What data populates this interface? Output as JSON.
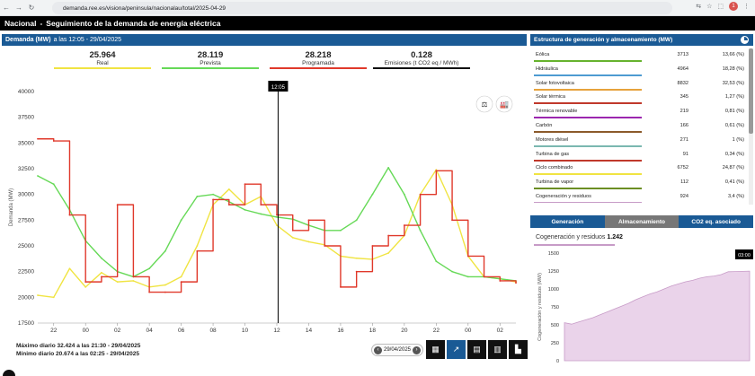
{
  "browser": {
    "url": "demanda.ree.es/visiona/peninsula/nacionalau/total/2025-04-29",
    "profile_initial": "1"
  },
  "site": {
    "region": "Nacional",
    "separator": "-",
    "title": "Seguimiento de la demanda de energía eléctrica"
  },
  "demand_panel": {
    "title_bold": "Demanda (MW)",
    "title_rest": "a las 12:05 - 29/04/2025",
    "kpis": [
      {
        "value": "25.964",
        "label": "Real",
        "color": "#f0e442"
      },
      {
        "value": "28.119",
        "label": "Prevista",
        "color": "#66d957"
      },
      {
        "value": "28.218",
        "label": "Programada",
        "color": "#e0392b"
      },
      {
        "value": "0.128",
        "label": "Emisiones (t CO2 eq / MWh)",
        "color": "#111111"
      }
    ],
    "cursor_label": "12:05",
    "ylabel": "Demanda (MW)",
    "max_text": "Máximo diario 32.424 a las 21:30 - 29/04/2025",
    "min_text": "Mínimo diario 20.674 a las 02:25 - 29/04/2025",
    "date": "29/04/2025"
  },
  "chart_data": [
    {
      "type": "line",
      "ylabel": "Demanda (MW)",
      "ylim": [
        17500,
        40000
      ],
      "yticks": [
        17500,
        20000,
        22500,
        25000,
        27500,
        30000,
        32500,
        35000,
        37500,
        40000
      ],
      "xticks": [
        "22",
        "00",
        "02",
        "04",
        "06",
        "08",
        "10",
        "12",
        "14",
        "16",
        "18",
        "20",
        "22",
        "00",
        "02"
      ],
      "x_hours": [
        21,
        22,
        23,
        24,
        25,
        26,
        27,
        28,
        29,
        30,
        31,
        32,
        33,
        34,
        35,
        36,
        37,
        38,
        39,
        40,
        41,
        42,
        43,
        44,
        45,
        46,
        47,
        48,
        49,
        50,
        51
      ],
      "series": [
        {
          "name": "Real",
          "color": "#f0e442",
          "values": [
            20200,
            20000,
            22800,
            21000,
            22400,
            21500,
            21600,
            21000,
            21200,
            22000,
            25000,
            29000,
            30500,
            29000,
            29800,
            27000,
            25800,
            25400,
            25100,
            24000,
            23800,
            23700,
            24300,
            26000,
            30000,
            32400,
            29000,
            24000,
            22000,
            21800,
            21500
          ]
        },
        {
          "name": "Prevista",
          "color": "#66d957",
          "values": [
            31800,
            31000,
            28500,
            25500,
            23800,
            22500,
            22000,
            22800,
            24500,
            27500,
            29800,
            30000,
            29300,
            28500,
            28100,
            27800,
            27600,
            27000,
            26500,
            26500,
            27500,
            30000,
            32600,
            30000,
            26500,
            23500,
            22500,
            22000,
            22000,
            21800,
            21600
          ]
        },
        {
          "name": "Programada",
          "color": "#e0392b",
          "values": [
            35400,
            35200,
            28000,
            21500,
            22000,
            29000,
            22000,
            20500,
            20500,
            21500,
            24500,
            29500,
            29000,
            31000,
            29000,
            28000,
            26500,
            27500,
            25000,
            21000,
            22500,
            25000,
            26000,
            27000,
            30000,
            32300,
            27500,
            24000,
            22000,
            21600,
            21400
          ]
        }
      ]
    },
    {
      "type": "area",
      "title": "Cogeneración y residuos 1.242",
      "ylabel": "Cogeneración y residuos (MW)",
      "ylim": [
        0,
        1500
      ],
      "yticks": [
        0,
        250,
        500,
        750,
        1000,
        1250,
        1500
      ],
      "cursor_label": "03:00",
      "values": [
        530,
        510,
        540,
        570,
        600,
        640,
        680,
        720,
        760,
        800,
        850,
        890,
        930,
        960,
        1000,
        1040,
        1070,
        1100,
        1120,
        1150,
        1170,
        1180,
        1200,
        1240,
        1242,
        1245,
        1248
      ],
      "color": "#c79bc7"
    }
  ],
  "structure_panel": {
    "title": "Estructura de generación y almacenamiento (MW)",
    "rows": [
      {
        "name": "Eólica",
        "mw": "3713",
        "pct": "13,66 (%)",
        "color": "#66b32e"
      },
      {
        "name": "Hidráulica",
        "mw": "4964",
        "pct": "18,28 (%)",
        "color": "#4e9bd1"
      },
      {
        "name": "Solar fotovoltaica",
        "mw": "8832",
        "pct": "32,53 (%)",
        "color": "#e6a23c"
      },
      {
        "name": "Solar térmica",
        "mw": "345",
        "pct": "1,27 (%)",
        "color": "#c0392b"
      },
      {
        "name": "Térmica renovable",
        "mw": "219",
        "pct": "0,81 (%)",
        "color": "#9b27af"
      },
      {
        "name": "Carbón",
        "mw": "166",
        "pct": "0,61 (%)",
        "color": "#8b5a2b"
      },
      {
        "name": "Motores diésel",
        "mw": "271",
        "pct": "1 (%)",
        "color": "#7ab8b0"
      },
      {
        "name": "Turbina de gas",
        "mw": "91",
        "pct": "0,34 (%)",
        "color": "#c0392b"
      },
      {
        "name": "Ciclo combinado",
        "mw": "6752",
        "pct": "24,87 (%)",
        "color": "#f0e442"
      },
      {
        "name": "Turbina de vapor",
        "mw": "112",
        "pct": "0,41 (%)",
        "color": "#6b8e23"
      },
      {
        "name": "Cogeneración y residuos",
        "mw": "924",
        "pct": "3,4 (%)",
        "color": "#c79bc7"
      }
    ],
    "tabs": [
      "Generación",
      "Almacenamiento",
      "CO2 eq. asociado"
    ],
    "sub_label": "Cogeneración y residuos",
    "sub_value": "1.242"
  }
}
